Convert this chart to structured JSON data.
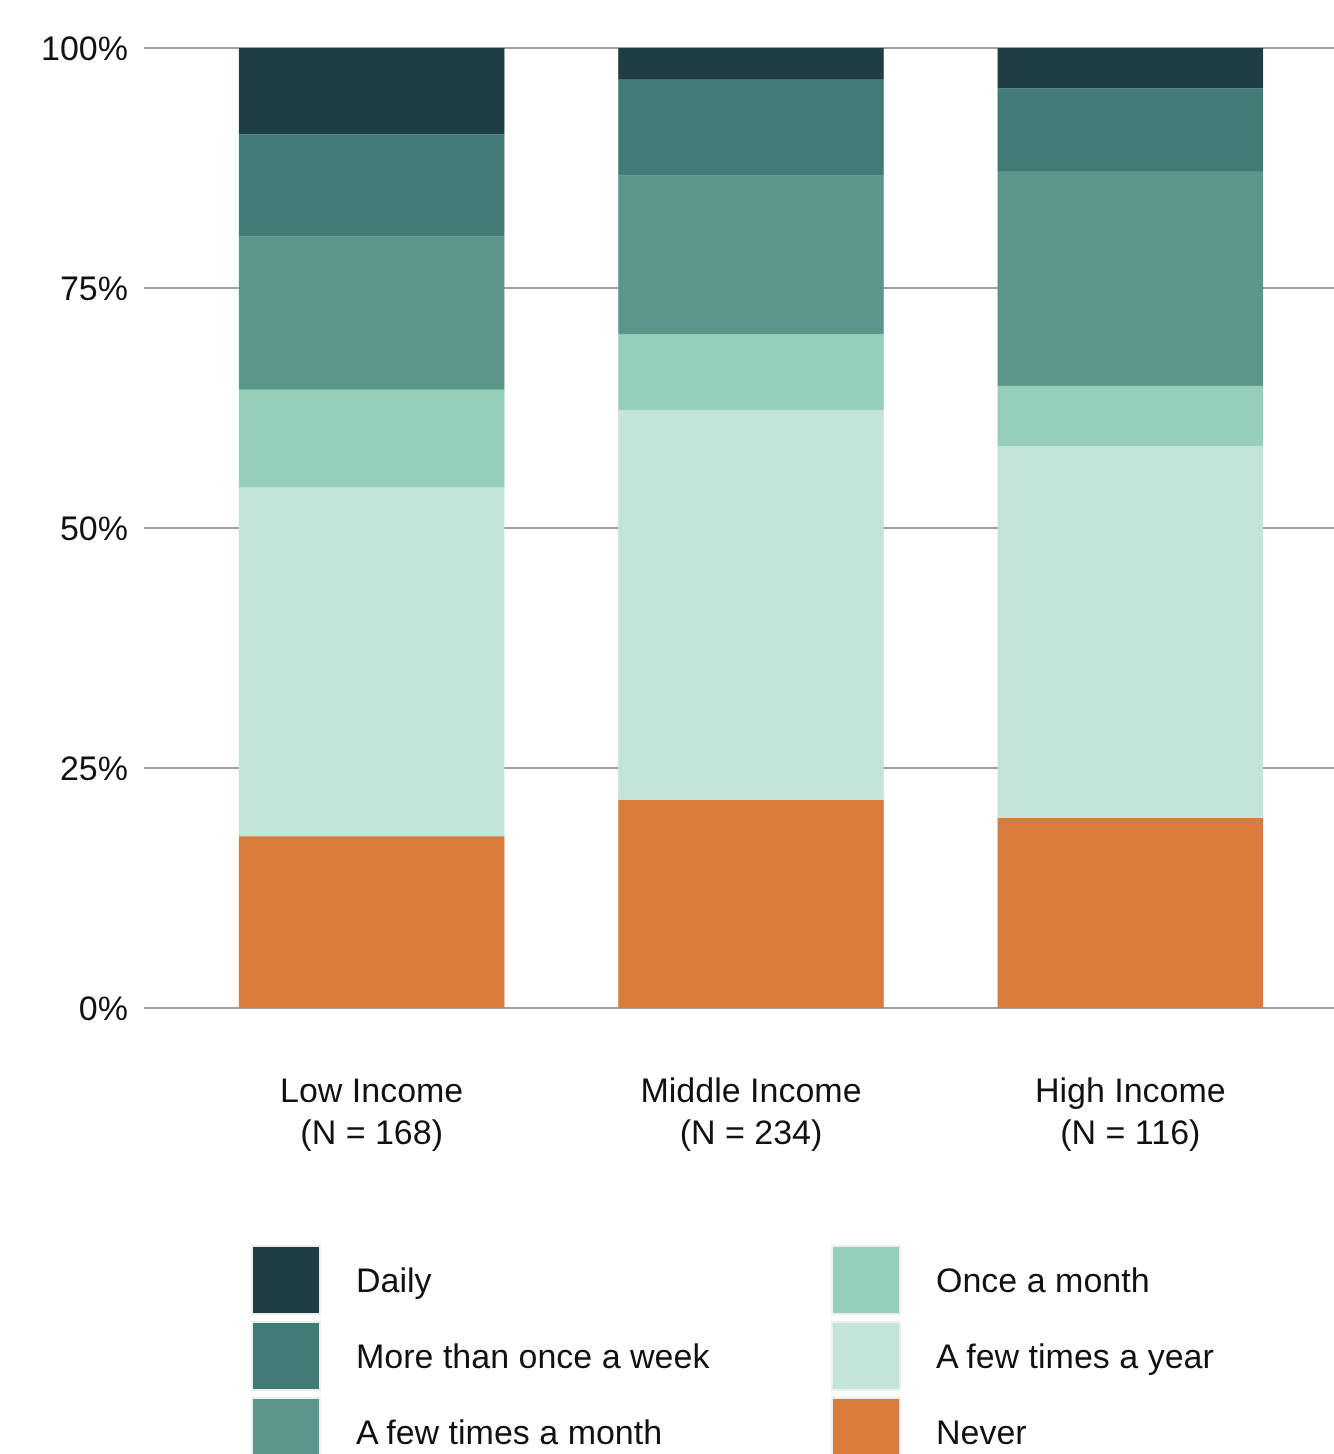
{
  "chart_data": {
    "type": "bar",
    "stacked": true,
    "categories": [
      "Low Income\n(N = 168)",
      "Middle Income\n(N = 234)",
      "High Income\n(N = 116)"
    ],
    "series": [
      {
        "name": "Never",
        "color": "#d97b3b",
        "values": [
          17.9,
          21.7,
          19.8
        ]
      },
      {
        "name": "A few times a year",
        "color": "#c3e4d9",
        "values": [
          36.3,
          40.6,
          38.7
        ]
      },
      {
        "name": "Once a month",
        "color": "#95cfba",
        "values": [
          10.2,
          7.9,
          6.3
        ]
      },
      {
        "name": "A few times a month",
        "color": "#5a968c",
        "values": [
          16.0,
          16.5,
          22.3
        ]
      },
      {
        "name": "More than once a week",
        "color": "#417b76",
        "values": [
          10.6,
          10.0,
          8.7
        ]
      },
      {
        "name": "Daily",
        "color": "#1f3d45",
        "values": [
          9.0,
          3.3,
          4.2
        ]
      }
    ],
    "ylim": [
      0,
      100
    ],
    "yticks": [
      {
        "value": 0,
        "label": "0%"
      },
      {
        "value": 25,
        "label": "25%"
      },
      {
        "value": 50,
        "label": "50%"
      },
      {
        "value": 75,
        "label": "75%"
      },
      {
        "value": 100,
        "label": "100%"
      }
    ],
    "grid": "y",
    "legend": "bottom"
  }
}
